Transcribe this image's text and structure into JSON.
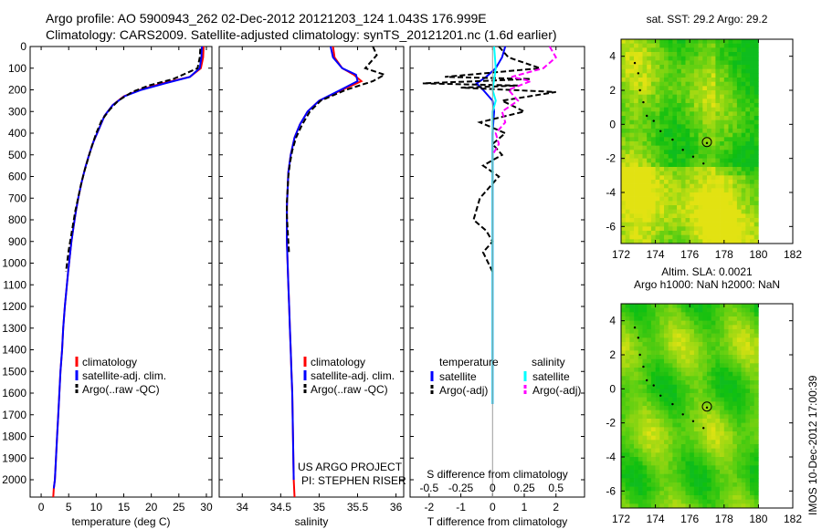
{
  "header": {
    "line1": "Argo profile: AO 5900943_262 02-Dec-2012 20121203_124 1.043S 176.999E",
    "line2": "Climatology: CARS2009. Satellite-adjusted climatology: synTS_20121201.nc (1.6d earlier)"
  },
  "credit": {
    "line1": "US ARGO PROJECT",
    "line2": "PI: STEPHEN RISER"
  },
  "stamp": "IMOS 10-Dec-2012 17:00:39",
  "colors": {
    "clim": "#ff0000",
    "sat": "#0000ff",
    "argo": "#000000",
    "sal_sat": "#00ffff",
    "sal_argo": "#ff00ff"
  },
  "chart_data": [
    {
      "type": "line",
      "id": "temperature",
      "xlabel": "temperature (deg C)",
      "ylabel": "",
      "xlim": [
        -2,
        31
      ],
      "ylim": [
        2080,
        0
      ],
      "xticks": [
        0,
        5,
        10,
        15,
        20,
        25,
        30
      ],
      "yticks": [
        0,
        100,
        200,
        300,
        400,
        500,
        600,
        700,
        800,
        900,
        1000,
        1100,
        1200,
        1300,
        1400,
        1500,
        1600,
        1700,
        1800,
        1900,
        2000
      ],
      "legend": [
        "climatology",
        "satellite-adj. clim.",
        "Argo(..raw -QC)"
      ],
      "series": [
        {
          "name": "climatology",
          "color": "#ff0000",
          "dash": "",
          "x": [
            29.5,
            29.4,
            29.0,
            27.0,
            22.0,
            18.0,
            15.0,
            13.0,
            11.5,
            10.5,
            9.5,
            8.7,
            8.0,
            7.4,
            6.8,
            6.3,
            5.9,
            5.5,
            5.2,
            4.9,
            4.6,
            4.3,
            4.0,
            3.8,
            3.5,
            3.3,
            3.1,
            2.9,
            2.7,
            2.5,
            2.3,
            2.2
          ],
          "y": [
            0,
            50,
            100,
            140,
            170,
            200,
            230,
            270,
            320,
            380,
            440,
            500,
            560,
            620,
            690,
            760,
            830,
            900,
            970,
            1040,
            1120,
            1200,
            1300,
            1400,
            1500,
            1600,
            1700,
            1800,
            1900,
            2000,
            2040,
            2080
          ]
        },
        {
          "name": "satellite-adj. clim.",
          "color": "#0000ff",
          "dash": "",
          "x": [
            29.2,
            29.1,
            28.8,
            27.0,
            22.5,
            18.2,
            15.1,
            13.0,
            11.5,
            10.5,
            9.5,
            8.7,
            8.0,
            7.4,
            6.8,
            6.3,
            5.9,
            5.5,
            5.2,
            4.9,
            4.6,
            4.3,
            4.0,
            3.8,
            3.5,
            3.3,
            3.1,
            2.9,
            2.7,
            2.5,
            2.3
          ],
          "y": [
            0,
            50,
            100,
            140,
            170,
            200,
            230,
            270,
            320,
            380,
            440,
            500,
            560,
            620,
            690,
            760,
            830,
            900,
            970,
            1040,
            1120,
            1200,
            1300,
            1400,
            1500,
            1600,
            1700,
            1800,
            1900,
            2000,
            2040
          ]
        },
        {
          "name": "Argo(..raw -QC)",
          "color": "#000000",
          "dash": "6,3",
          "x": [
            28.9,
            28.8,
            28.4,
            24.0,
            19.5,
            16.5,
            14.0,
            12.5,
            11.0,
            10.0,
            9.2,
            8.5,
            7.8,
            7.2,
            6.7,
            6.2,
            5.8,
            5.4,
            5.0,
            4.7,
            4.5
          ],
          "y": [
            10,
            50,
            100,
            150,
            180,
            210,
            250,
            290,
            340,
            400,
            460,
            520,
            580,
            640,
            700,
            760,
            820,
            880,
            940,
            1000,
            1040
          ]
        }
      ]
    },
    {
      "type": "line",
      "id": "salinity",
      "xlabel": "salinity",
      "xlim": [
        33.7,
        36.1
      ],
      "ylim": [
        2080,
        0
      ],
      "xticks": [
        34,
        34.5,
        35,
        35.5,
        36
      ],
      "yticks": [
        0,
        100,
        200,
        300,
        400,
        500,
        600,
        700,
        800,
        900,
        1000,
        1100,
        1200,
        1300,
        1400,
        1500,
        1600,
        1700,
        1800,
        1900,
        2000
      ],
      "legend": [
        "climatology",
        "satellite-adj. clim.",
        "Argo(..raw -QC)"
      ],
      "series": [
        {
          "name": "climatology",
          "color": "#ff0000",
          "dash": "",
          "x": [
            35.18,
            35.2,
            35.3,
            35.45,
            35.55,
            35.3,
            35.0,
            34.85,
            34.75,
            34.68,
            34.63,
            34.6,
            34.59,
            34.58,
            34.58,
            34.58,
            34.59,
            34.6,
            34.61,
            34.62,
            34.63,
            34.64,
            34.65,
            34.66,
            34.67,
            34.68
          ],
          "y": [
            0,
            50,
            100,
            130,
            160,
            200,
            250,
            300,
            360,
            420,
            500,
            580,
            660,
            740,
            820,
            900,
            1000,
            1100,
            1200,
            1300,
            1400,
            1500,
            1600,
            1800,
            2000,
            2080
          ]
        },
        {
          "name": "satellite-adj. clim.",
          "color": "#0000ff",
          "dash": "",
          "x": [
            35.15,
            35.18,
            35.3,
            35.48,
            35.5,
            35.28,
            35.0,
            34.85,
            34.75,
            34.68,
            34.63,
            34.6,
            34.59,
            34.58,
            34.58,
            34.58,
            34.59,
            34.6,
            34.61,
            34.62,
            34.63,
            34.64,
            34.65,
            34.66,
            34.67
          ],
          "y": [
            0,
            50,
            100,
            130,
            160,
            200,
            250,
            300,
            360,
            420,
            500,
            580,
            660,
            740,
            820,
            900,
            1000,
            1100,
            1200,
            1300,
            1400,
            1500,
            1600,
            1800,
            2000
          ]
        },
        {
          "name": "Argo(..raw -QC)",
          "color": "#000000",
          "dash": "6,3",
          "x": [
            35.7,
            35.75,
            35.6,
            35.85,
            35.7,
            35.35,
            35.02,
            34.88,
            34.78,
            34.7,
            34.65,
            34.62,
            34.6,
            34.59,
            34.58,
            34.58,
            34.59,
            34.6,
            34.61
          ],
          "y": [
            0,
            40,
            100,
            130,
            160,
            200,
            250,
            300,
            360,
            420,
            480,
            540,
            600,
            660,
            720,
            780,
            840,
            900,
            960
          ]
        }
      ]
    },
    {
      "type": "line",
      "id": "difference",
      "xlabel": "T difference from climatology",
      "xlabel_top": "S difference from climatology",
      "xlim": [
        -2.6,
        2.9
      ],
      "ylim": [
        2080,
        0
      ],
      "xticks": [
        -2,
        -1,
        0,
        1,
        2
      ],
      "xticks_top": [
        "-0.5",
        "-0.25",
        "0",
        "0.25",
        "0.5"
      ],
      "yticks": [
        0,
        100,
        200,
        300,
        400,
        500,
        600,
        700,
        800,
        900,
        1000,
        1100,
        1200,
        1300,
        1400,
        1500,
        1600,
        1700,
        1800,
        1900,
        2000
      ],
      "legend_headers": [
        "temperature",
        "salinity"
      ],
      "legend": [
        "satellite",
        "Argo(-adj)",
        "satellite",
        "Argo(-adj)"
      ],
      "series": [
        {
          "name": "temperature satellite",
          "color": "#0000ff",
          "dash": "",
          "x": [
            0.4,
            0.3,
            0.1,
            -0.2,
            -0.5,
            -0.3,
            0.0,
            0.05,
            0.0,
            0.0,
            0.0,
            0.0,
            0.0,
            0.0,
            0.0,
            0.0,
            0.0,
            0.0,
            0.0,
            0.0
          ],
          "y": [
            0,
            50,
            100,
            140,
            170,
            200,
            250,
            300,
            400,
            500,
            600,
            700,
            800,
            900,
            1000,
            1100,
            1200,
            1400,
            1600,
            1650
          ]
        },
        {
          "name": "temperature Argo(-adj)",
          "color": "#000000",
          "dash": "6,3",
          "x": [
            0.2,
            0.5,
            1.5,
            -1.5,
            1.2,
            -2.2,
            0.8,
            -1.0,
            2.0,
            0.3,
            1.0,
            -0.4,
            0.4,
            0.0,
            0.3,
            -0.3,
            0.2,
            -0.4,
            -0.6,
            -0.2,
            0.0,
            -0.3,
            0.0
          ],
          "y": [
            0,
            50,
            100,
            140,
            150,
            170,
            180,
            190,
            210,
            250,
            300,
            350,
            400,
            450,
            500,
            550,
            600,
            700,
            800,
            850,
            900,
            950,
            1040
          ]
        },
        {
          "name": "salinity satellite",
          "color": "#00ffff",
          "dash": "",
          "x": [
            0.05,
            0.1,
            0.0,
            0.1,
            0.0,
            0.0,
            0.0,
            0.0,
            0.0,
            0.0,
            0.0,
            0.0
          ],
          "y": [
            0,
            100,
            200,
            250,
            300,
            500,
            700,
            900,
            1100,
            1300,
            1500,
            1650
          ]
        },
        {
          "name": "salinity Argo(-adj)",
          "color": "#ff00ff",
          "dash": "6,3",
          "x": [
            1.8,
            2.0,
            1.6,
            0.6,
            1.2,
            0.5,
            0.8,
            0.3,
            0.4,
            0.1,
            0.2,
            0.0
          ],
          "y": [
            0,
            50,
            100,
            140,
            160,
            200,
            250,
            300,
            350,
            400,
            450,
            500
          ]
        }
      ]
    },
    {
      "type": "heatmap",
      "id": "sst-map",
      "title": "sat. SST: 29.2  Argo: 29.2",
      "xlim": [
        172,
        182
      ],
      "ylim": [
        -7,
        5
      ],
      "xticks": [
        172,
        174,
        176,
        178,
        180,
        182
      ],
      "yticks": [
        4,
        2,
        0,
        -2,
        -4,
        -6
      ],
      "float_position": {
        "lon": 177.0,
        "lat": -1.04
      },
      "track": {
        "lon": [
          172.8,
          173.0,
          173.1,
          173.3,
          173.5,
          173.9,
          174.3,
          175.0,
          175.6,
          176.2,
          176.8,
          177.0
        ],
        "lat": [
          3.6,
          3.0,
          2.0,
          1.3,
          0.5,
          0.2,
          -0.4,
          -0.9,
          -1.5,
          -1.9,
          -2.3,
          -1.1
        ]
      }
    },
    {
      "type": "heatmap",
      "id": "sla-map",
      "title": "Altim. SLA: 0.0021",
      "subtitle": "Argo h1000: NaN h2000: NaN",
      "xlim": [
        172,
        182
      ],
      "ylim": [
        -7,
        5
      ],
      "xticks": [
        172,
        174,
        176,
        178,
        180,
        182
      ],
      "yticks": [
        4,
        2,
        0,
        -2,
        -4,
        -6
      ],
      "float_position": {
        "lon": 177.0,
        "lat": -1.04
      },
      "track": {
        "lon": [
          172.8,
          173.0,
          173.1,
          173.3,
          173.5,
          173.9,
          174.3,
          175.0,
          175.6,
          176.2,
          176.8,
          177.0
        ],
        "lat": [
          3.6,
          3.0,
          2.0,
          1.3,
          0.5,
          0.2,
          -0.4,
          -0.9,
          -1.5,
          -1.9,
          -2.3,
          -1.1
        ]
      }
    }
  ]
}
